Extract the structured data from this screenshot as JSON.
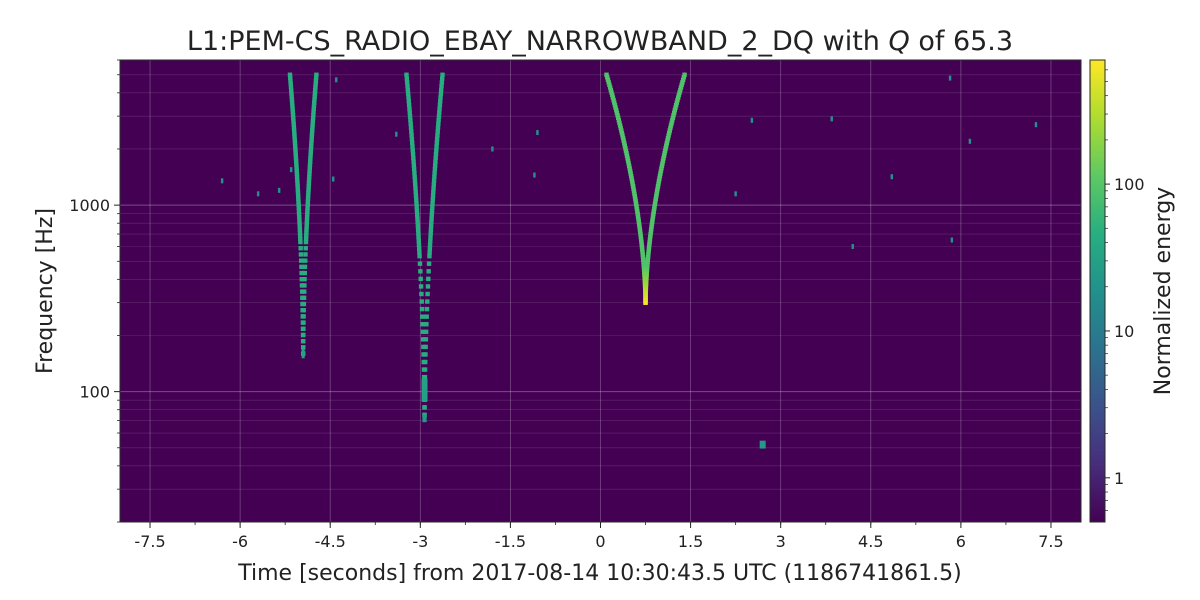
{
  "chart_data": {
    "type": "heatmap",
    "title_prefix": "L1:PEM-CS_RADIO_EBAY_NARROWBAND_2_DQ with ",
    "title_q": "Q",
    "title_suffix": " of 65.3",
    "xlabel": "Time [seconds] from 2017-08-14 10:30:43.5 UTC (1186741861.5)",
    "ylabel": "Frequency [Hz]",
    "xlim": [
      -8,
      8
    ],
    "ylim": [
      20,
      6000
    ],
    "yscale": "log",
    "grid": true,
    "x_ticks": [
      {
        "value": -7.5,
        "label": "-7.5"
      },
      {
        "value": -6,
        "label": "-6"
      },
      {
        "value": -4.5,
        "label": "-4.5"
      },
      {
        "value": -3,
        "label": "-3"
      },
      {
        "value": -1.5,
        "label": "-1.5"
      },
      {
        "value": 0,
        "label": "0"
      },
      {
        "value": 1.5,
        "label": "1.5"
      },
      {
        "value": 3,
        "label": "3"
      },
      {
        "value": 4.5,
        "label": "4.5"
      },
      {
        "value": 6,
        "label": "6"
      },
      {
        "value": 7.5,
        "label": "7.5"
      }
    ],
    "y_ticks": [
      {
        "value": 100,
        "label": "100"
      },
      {
        "value": 1000,
        "label": "1000"
      }
    ],
    "colorbar": {
      "label": "Normalized energy",
      "colormap": "viridis",
      "scale": "log",
      "range": [
        0.5,
        700
      ],
      "ticks": [
        {
          "value": 1,
          "label": "1"
        },
        {
          "value": 10,
          "label": "10"
        },
        {
          "value": 100,
          "label": "100"
        }
      ]
    },
    "background_color": "#440154",
    "chirps": [
      {
        "name": "chirp-1",
        "t0": -4.95,
        "f_min": 160,
        "f_max": 5000,
        "half_width_top": 0.22,
        "energy": 45,
        "dashed_below": 650
      },
      {
        "name": "chirp-2",
        "t0": -2.93,
        "f_min": 75,
        "f_max": 5000,
        "half_width_top": 0.3,
        "energy": 45,
        "dashed_below": 520
      },
      {
        "name": "chirp-3",
        "t0": 0.75,
        "f_min": 300,
        "f_max": 5000,
        "half_width_top": 0.65,
        "energy": 90,
        "peak_energy": 650
      }
    ],
    "blobs": [
      {
        "t": -2.93,
        "f": 102,
        "energy": 30,
        "dt": 0.1,
        "df_ratio": 1.15
      },
      {
        "t": -4.95,
        "f": 160,
        "energy": 30,
        "dt": 0.05,
        "df_ratio": 1.06
      },
      {
        "t": -2.93,
        "f": 72,
        "energy": 25,
        "dt": 0.07,
        "df_ratio": 1.05
      },
      {
        "t": 2.7,
        "f": 52,
        "energy": 25,
        "dt": 0.1,
        "df_ratio": 1.05
      }
    ],
    "specks": [
      {
        "t": -6.3,
        "f": 1350,
        "energy": 20
      },
      {
        "t": -5.7,
        "f": 1150,
        "energy": 20
      },
      {
        "t": -5.35,
        "f": 1200,
        "energy": 20
      },
      {
        "t": -5.15,
        "f": 1550,
        "energy": 20
      },
      {
        "t": -4.45,
        "f": 1380,
        "energy": 20
      },
      {
        "t": -4.4,
        "f": 4700,
        "energy": 20
      },
      {
        "t": -3.4,
        "f": 2400,
        "energy": 20
      },
      {
        "t": -1.8,
        "f": 2000,
        "energy": 20
      },
      {
        "t": -1.1,
        "f": 1450,
        "energy": 20
      },
      {
        "t": -1.05,
        "f": 2450,
        "energy": 20
      },
      {
        "t": 2.25,
        "f": 1150,
        "energy": 20
      },
      {
        "t": 2.52,
        "f": 2850,
        "energy": 20
      },
      {
        "t": 3.85,
        "f": 2900,
        "energy": 20
      },
      {
        "t": 4.2,
        "f": 600,
        "energy": 20
      },
      {
        "t": 4.85,
        "f": 1420,
        "energy": 20
      },
      {
        "t": 5.82,
        "f": 4800,
        "energy": 20
      },
      {
        "t": 5.85,
        "f": 650,
        "energy": 20
      },
      {
        "t": 6.15,
        "f": 2200,
        "energy": 20
      },
      {
        "t": 7.25,
        "f": 2700,
        "energy": 20
      }
    ]
  }
}
